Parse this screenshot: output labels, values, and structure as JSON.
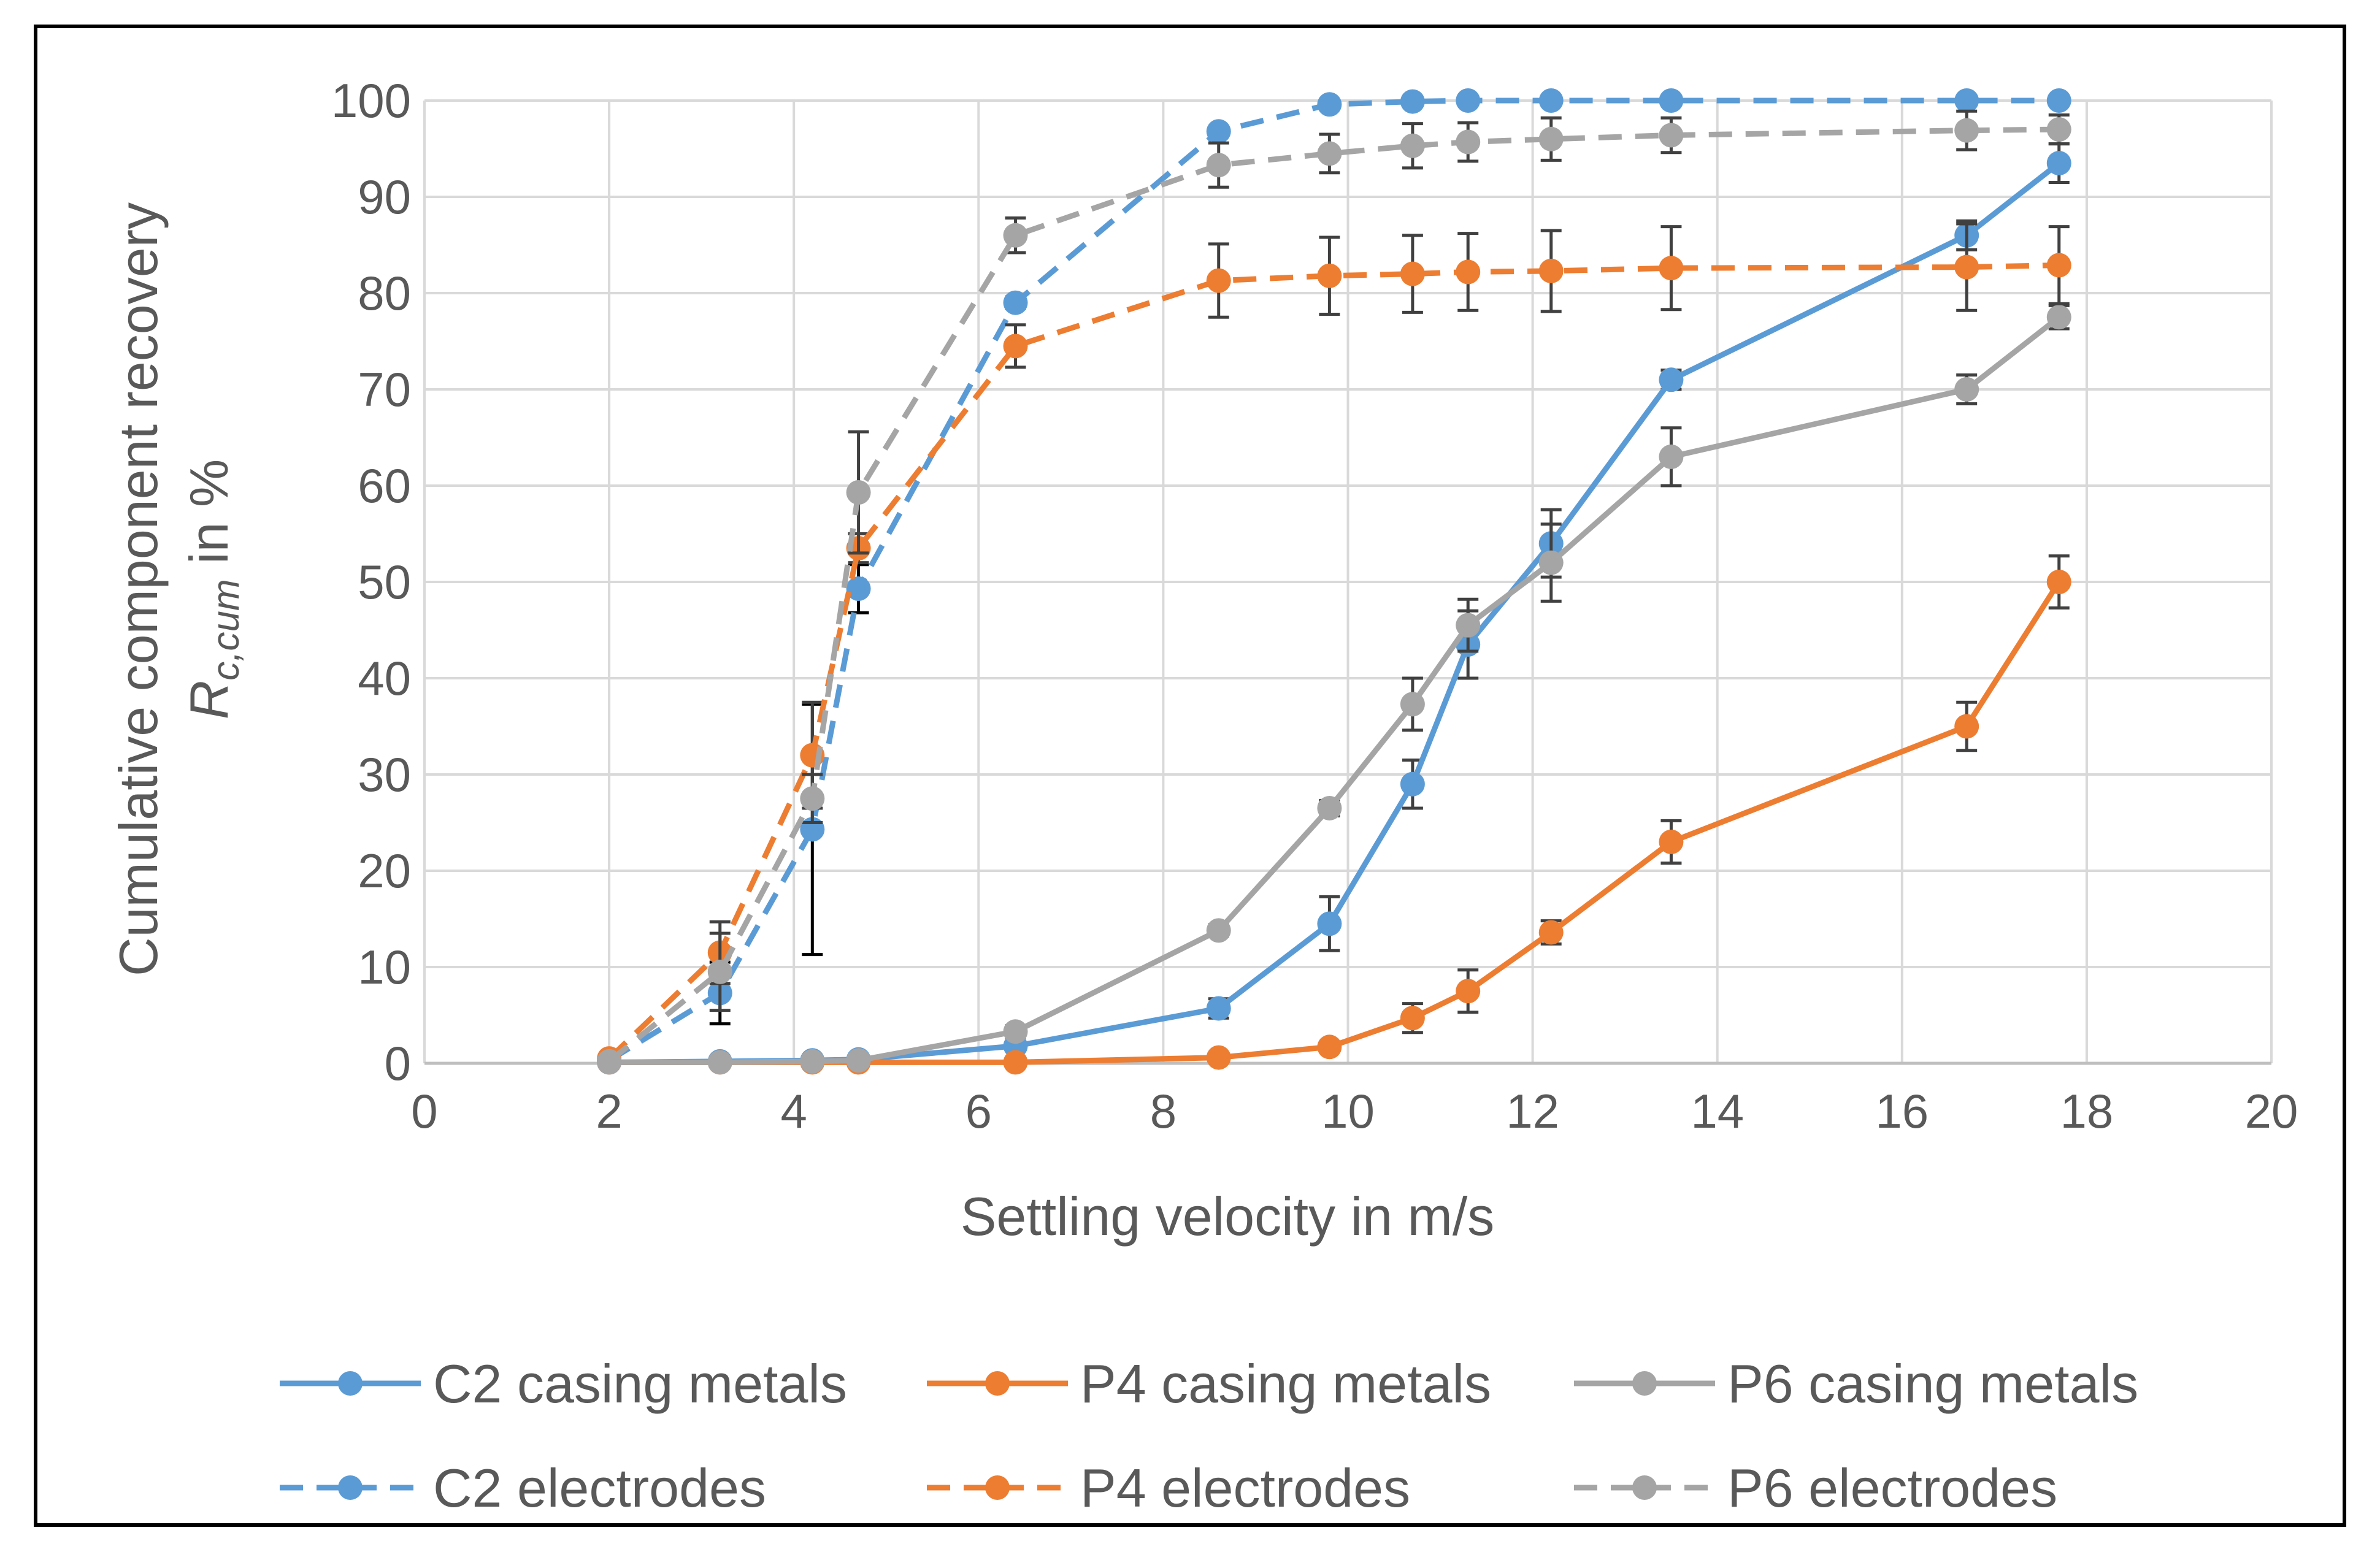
{
  "chart_data": {
    "type": "line",
    "title": "",
    "xlabel": "Settling velocity in m/s",
    "ylabel_line1": "Cumulative component recovery",
    "ylabel_symbol": "R",
    "ylabel_subscript": "c,cum",
    "ylabel_suffix": " in %",
    "xlim": [
      0,
      20
    ],
    "ylim": [
      0,
      100
    ],
    "x_ticks": [
      0,
      2,
      4,
      6,
      8,
      10,
      12,
      14,
      16,
      18,
      20
    ],
    "y_ticks": [
      0,
      10,
      20,
      30,
      40,
      50,
      60,
      70,
      80,
      90,
      100
    ],
    "grid": true,
    "legend_position": "bottom",
    "series": [
      {
        "name": "C2 casing metals",
        "color": "#5B9BD5",
        "dash": "solid",
        "x": [
          2.0,
          3.2,
          4.2,
          4.7,
          6.4,
          8.6,
          9.8,
          10.7,
          11.3,
          12.2,
          13.5,
          16.7,
          17.7
        ],
        "y": [
          0.1,
          0.2,
          0.3,
          0.4,
          1.8,
          5.7,
          14.5,
          29.0,
          43.5,
          54.0,
          71.0,
          86.0,
          93.5
        ],
        "err": [
          0,
          0,
          0,
          0,
          0.5,
          1.0,
          2.8,
          2.5,
          3.5,
          3.5,
          1.0,
          1.5,
          2.0
        ]
      },
      {
        "name": "P4 casing metals",
        "color": "#ED7D31",
        "dash": "solid",
        "x": [
          2.0,
          3.2,
          4.2,
          4.7,
          6.4,
          8.6,
          9.8,
          10.7,
          11.3,
          12.2,
          13.5,
          16.7,
          17.7
        ],
        "y": [
          0.1,
          0.1,
          0.1,
          0.1,
          0.1,
          0.6,
          1.7,
          4.7,
          7.5,
          13.6,
          23.0,
          35.0,
          50.0
        ],
        "err": [
          0,
          0,
          0,
          0,
          0,
          0.4,
          0.5,
          1.5,
          2.2,
          1.2,
          2.2,
          2.5,
          2.7
        ]
      },
      {
        "name": "P6 casing metals",
        "color": "#A5A5A5",
        "dash": "solid",
        "x": [
          2.0,
          3.2,
          4.2,
          4.7,
          6.4,
          8.6,
          9.8,
          10.7,
          11.3,
          12.2,
          13.5,
          16.7,
          17.7
        ],
        "y": [
          0.1,
          0.1,
          0.2,
          0.3,
          3.3,
          13.8,
          26.5,
          37.3,
          45.5,
          52.0,
          63.0,
          70.0,
          77.5
        ],
        "err": [
          0,
          0,
          0,
          0,
          0.6,
          0.6,
          0.8,
          2.7,
          2.7,
          4.0,
          3.0,
          1.5,
          1.2
        ]
      },
      {
        "name": "C2 electrodes",
        "color": "#5B9BD5",
        "dash": "dashed",
        "x": [
          2.0,
          3.2,
          4.2,
          4.7,
          6.4,
          8.6,
          9.8,
          10.7,
          11.3,
          12.2,
          13.5,
          16.7,
          17.7
        ],
        "y": [
          0.3,
          7.3,
          24.3,
          49.3,
          79.0,
          96.8,
          99.6,
          99.9,
          100.0,
          100.0,
          100.0,
          100.0,
          100.0
        ],
        "err": [
          0,
          3.2,
          13.0,
          2.5,
          0.6,
          0.4,
          0.2,
          0.1,
          0.1,
          0.1,
          0.1,
          0.1,
          0.1
        ]
      },
      {
        "name": "P4 electrodes",
        "color": "#ED7D31",
        "dash": "dashed",
        "x": [
          2.0,
          3.2,
          4.2,
          4.7,
          6.4,
          8.6,
          9.8,
          10.7,
          11.3,
          12.2,
          13.5,
          16.7,
          17.7
        ],
        "y": [
          0.5,
          11.5,
          32.0,
          53.5,
          74.5,
          81.3,
          81.8,
          82.0,
          82.2,
          82.3,
          82.6,
          82.7,
          82.9
        ],
        "err": [
          0,
          3.2,
          5.5,
          1.5,
          2.2,
          3.8,
          4.0,
          4.0,
          4.0,
          4.2,
          4.3,
          4.5,
          4.0
        ]
      },
      {
        "name": "P6 electrodes",
        "color": "#A5A5A5",
        "dash": "dashed",
        "x": [
          2.0,
          3.2,
          4.2,
          4.7,
          6.4,
          8.6,
          9.8,
          10.7,
          11.3,
          12.2,
          13.5,
          16.7,
          17.7
        ],
        "y": [
          0.2,
          9.5,
          27.5,
          59.3,
          86.0,
          93.3,
          94.5,
          95.3,
          95.7,
          96.0,
          96.4,
          96.9,
          97.0
        ],
        "err": [
          0,
          4.0,
          2.5,
          6.3,
          1.8,
          2.3,
          2.0,
          2.3,
          2.0,
          2.2,
          1.8,
          2.0,
          1.5
        ]
      }
    ]
  }
}
